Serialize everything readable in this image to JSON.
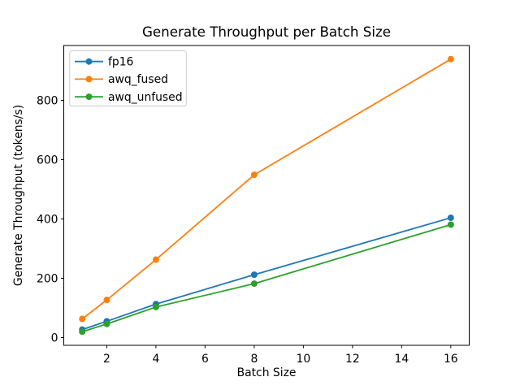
{
  "figure": {
    "background": "#ffffff"
  },
  "chart_data": {
    "type": "line",
    "title": "Generate Throughput per Batch Size",
    "xlabel": "Batch Size",
    "ylabel": "Generate Throughput (tokens/s)",
    "x": [
      1,
      2,
      4,
      8,
      16
    ],
    "series": [
      {
        "name": "fp16",
        "color": "#1f77b4",
        "values": [
          27,
          55,
          113,
          212,
          404
        ]
      },
      {
        "name": "awq_fused",
        "color": "#ff7f0e",
        "values": [
          63,
          127,
          263,
          549,
          939
        ]
      },
      {
        "name": "awq_unfused",
        "color": "#2ca02c",
        "values": [
          20,
          46,
          103,
          182,
          381
        ]
      }
    ],
    "xlim": [
      0.25,
      16.75
    ],
    "ylim": [
      -26,
      985
    ],
    "xticks": [
      2,
      4,
      6,
      8,
      10,
      12,
      14,
      16
    ],
    "yticks": [
      0,
      200,
      400,
      600,
      800
    ],
    "grid": false,
    "legend_position": "upper left",
    "marker": "o",
    "line_style": "solid",
    "axis_color": "#000000",
    "legend_border_color": "#cccccc",
    "legend_background": "#ffffff"
  }
}
